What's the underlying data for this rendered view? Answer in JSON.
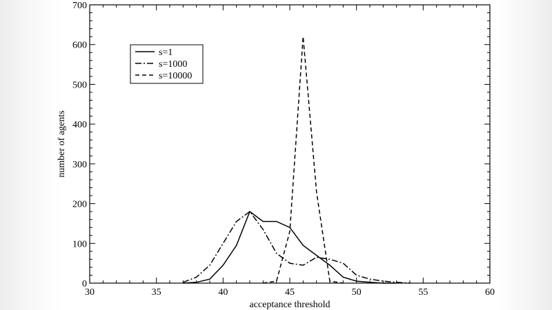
{
  "chart_data": {
    "type": "line",
    "title": "",
    "xlabel": "acceptance threshold",
    "ylabel": "number of agents",
    "xlim": [
      30,
      60
    ],
    "ylim": [
      0,
      700
    ],
    "xticks": [
      30,
      35,
      40,
      45,
      50,
      55,
      60
    ],
    "yticks": [
      0,
      100,
      200,
      300,
      400,
      500,
      600,
      700
    ],
    "grid": false,
    "legend_position": "top-left",
    "series": [
      {
        "name": "s=1",
        "dash": "solid",
        "color": "#000000",
        "x": [
          37,
          38,
          39,
          40,
          41,
          42,
          43,
          44,
          45,
          46,
          47,
          48,
          49,
          50,
          51,
          52,
          53
        ],
        "y": [
          0,
          2,
          10,
          45,
          95,
          180,
          155,
          155,
          140,
          95,
          70,
          45,
          15,
          5,
          2,
          0,
          0
        ]
      },
      {
        "name": "s=1000",
        "dash": "dashdot",
        "color": "#000000",
        "x": [
          37,
          38,
          39,
          40,
          41,
          42,
          43,
          44,
          45,
          46,
          47,
          48,
          49,
          50,
          51,
          52,
          53,
          54
        ],
        "y": [
          2,
          15,
          45,
          100,
          155,
          180,
          135,
          75,
          50,
          45,
          65,
          60,
          50,
          20,
          10,
          5,
          2,
          0
        ]
      },
      {
        "name": "s=10000",
        "dash": "dashed",
        "color": "#000000",
        "x": [
          43,
          44,
          45,
          46,
          47,
          48,
          49
        ],
        "y": [
          0,
          5,
          130,
          620,
          230,
          5,
          0
        ]
      }
    ]
  }
}
